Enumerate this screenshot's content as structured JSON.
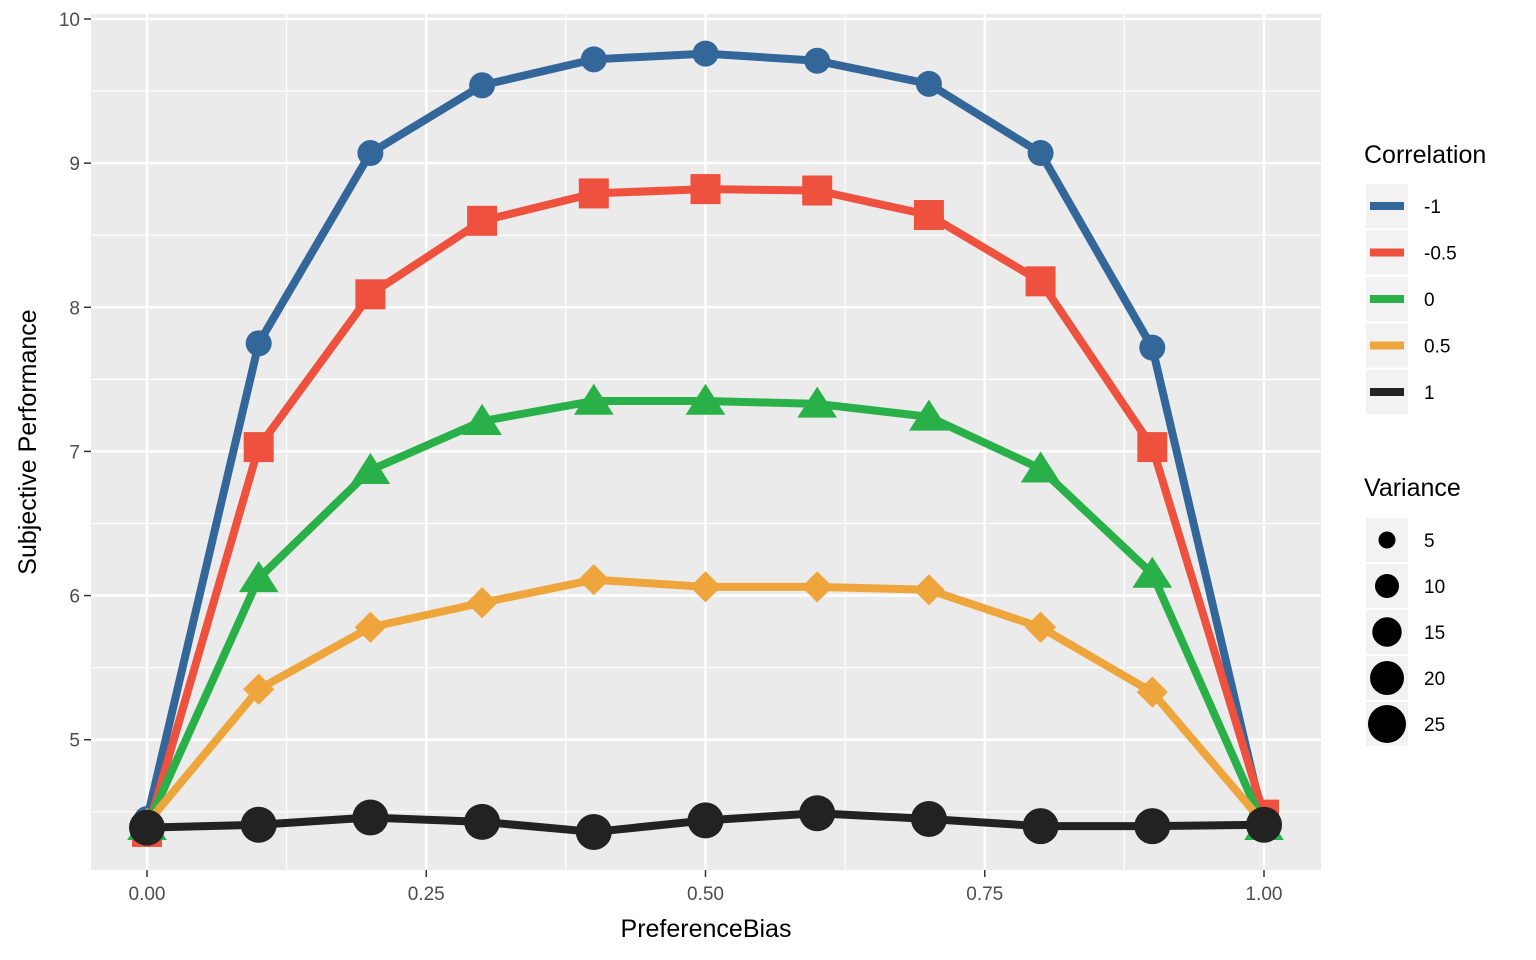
{
  "chart_data": {
    "type": "line",
    "title": "",
    "xlabel": "PreferenceBias",
    "ylabel": "Subjective Performance",
    "x": [
      0.0,
      0.1,
      0.2,
      0.3,
      0.4,
      0.5,
      0.6,
      0.7,
      0.8,
      0.9,
      1.0
    ],
    "xlim": [
      -0.05,
      1.05
    ],
    "ylim": [
      4.1,
      10.0
    ],
    "x_ticks": [
      0.0,
      0.25,
      0.5,
      0.75,
      1.0
    ],
    "x_tick_labels": [
      "0.00",
      "0.25",
      "0.50",
      "0.75",
      "1.00"
    ],
    "y_ticks": [
      5,
      6,
      7,
      8,
      9,
      10
    ],
    "y_tick_labels": [
      "5",
      "6",
      "7",
      "8",
      "9",
      "10"
    ],
    "grid": true,
    "legend_position": "right",
    "legend_color_title": "Correlation",
    "legend_size_title": "Variance",
    "series": [
      {
        "name": "-1",
        "color": "#336699",
        "shape": "circle",
        "values": [
          4.45,
          7.75,
          9.07,
          9.54,
          9.72,
          9.76,
          9.71,
          9.55,
          9.07,
          7.72,
          4.42
        ]
      },
      {
        "name": "-0.5",
        "color": "#ee513e",
        "shape": "square",
        "values": [
          4.36,
          7.03,
          8.09,
          8.6,
          8.79,
          8.82,
          8.81,
          8.64,
          8.18,
          7.03,
          4.48
        ]
      },
      {
        "name": "0",
        "color": "#2ab048",
        "shape": "triangle",
        "values": [
          4.4,
          6.12,
          6.87,
          7.21,
          7.35,
          7.35,
          7.33,
          7.24,
          6.88,
          6.15,
          4.4
        ]
      },
      {
        "name": "0.5",
        "color": "#eea53c",
        "shape": "diamond",
        "values": [
          4.42,
          5.35,
          5.78,
          5.95,
          6.11,
          6.06,
          6.06,
          6.04,
          5.78,
          5.33,
          4.42
        ]
      },
      {
        "name": "1",
        "color": "#222222",
        "shape": "circle",
        "values": [
          4.39,
          4.41,
          4.46,
          4.43,
          4.36,
          4.44,
          4.49,
          4.45,
          4.4,
          4.4,
          4.41
        ]
      }
    ],
    "variance_legend": [
      {
        "label": "5",
        "value": 5
      },
      {
        "label": "10",
        "value": 10
      },
      {
        "label": "15",
        "value": 15
      },
      {
        "label": "20",
        "value": 20
      },
      {
        "label": "25",
        "value": 25
      }
    ]
  }
}
